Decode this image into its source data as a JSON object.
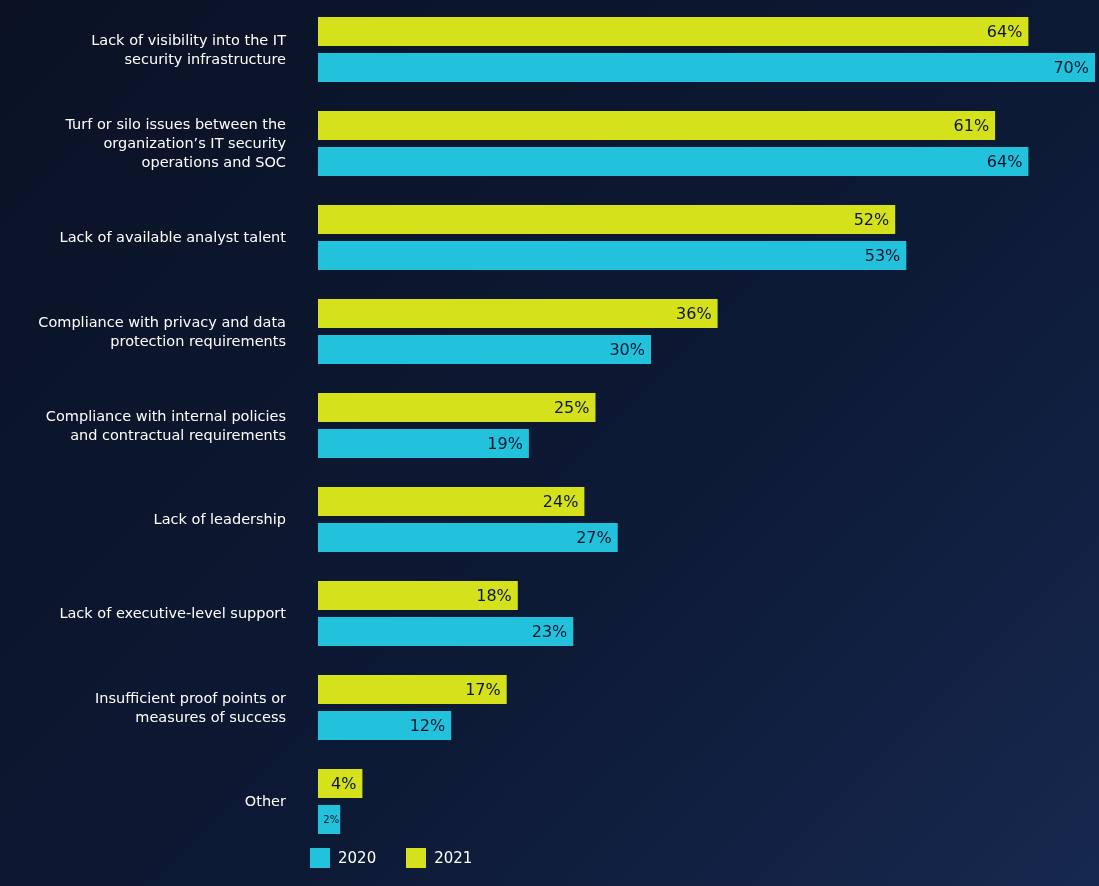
{
  "chart_data": {
    "type": "bar",
    "orientation": "horizontal",
    "categories": [
      "Lack of visibility into the IT security infrastructure",
      "Turf or silo issues between the organization’s IT security operations and SOC",
      "Lack of available analyst talent",
      "Compliance with privacy and data protection requirements",
      "Compliance with internal policies and contractual requirements",
      "Lack of leadership",
      "Lack of executive-level support",
      "Insufficient proof points or measures of success",
      "Other"
    ],
    "series": [
      {
        "name": "2020",
        "color": "#22c1dc",
        "values": [
          70,
          64,
          53,
          30,
          19,
          27,
          23,
          12,
          2
        ],
        "value_labels": [
          "70%",
          "64%",
          "53%",
          "30%",
          "19%",
          "27%",
          "23%",
          "12%",
          "2%"
        ]
      },
      {
        "name": "2021",
        "color": "#d5e21b",
        "values": [
          64,
          61,
          52,
          36,
          25,
          24,
          18,
          17,
          4
        ],
        "value_labels": [
          "64%",
          "61%",
          "52%",
          "36%",
          "25%",
          "24%",
          "18%",
          "17%",
          "4%"
        ]
      }
    ],
    "legend": "bottom left"
  }
}
